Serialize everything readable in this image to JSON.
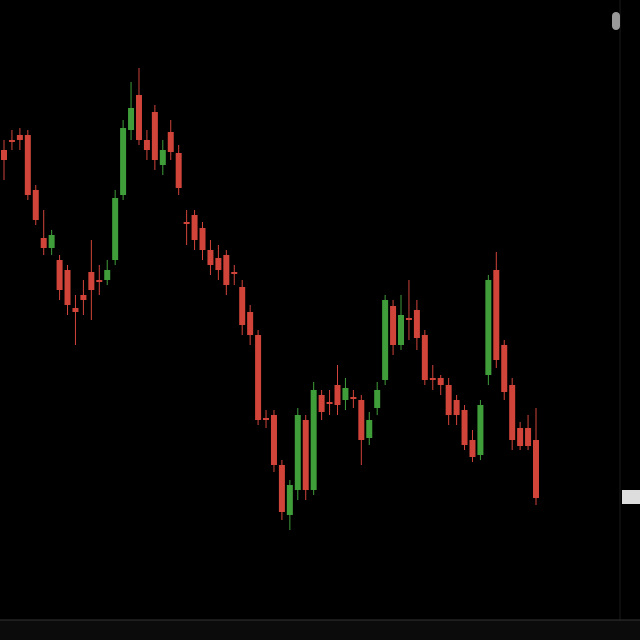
{
  "chart_data": {
    "type": "candlestick",
    "ylim": [
      20,
      640
    ],
    "up_color": "#3f9e3a",
    "down_color": "#d0443a",
    "open": [
      490,
      500,
      505,
      505,
      450,
      402,
      392,
      380,
      370,
      332,
      345,
      368,
      360,
      360,
      380,
      445,
      510,
      545,
      500,
      528,
      475,
      508,
      487,
      418,
      425,
      412,
      390,
      382,
      385,
      368,
      353,
      328,
      305,
      222,
      225,
      175,
      125,
      150,
      220,
      150,
      245,
      238,
      255,
      240,
      243,
      240,
      202,
      232,
      260,
      334,
      295,
      322,
      330,
      305,
      262,
      262,
      255,
      240,
      230,
      200,
      185,
      265,
      370,
      295,
      255,
      212,
      212,
      200
    ],
    "close": [
      480,
      498,
      500,
      445,
      420,
      392,
      405,
      350,
      335,
      328,
      340,
      350,
      358,
      370,
      442,
      512,
      532,
      500,
      490,
      480,
      490,
      488,
      452,
      416,
      400,
      390,
      375,
      370,
      355,
      366,
      315,
      305,
      220,
      220,
      175,
      128,
      155,
      225,
      150,
      250,
      228,
      236,
      235,
      252,
      241,
      200,
      220,
      250,
      340,
      295,
      325,
      320,
      302,
      260,
      260,
      255,
      225,
      225,
      195,
      183,
      235,
      360,
      280,
      248,
      200,
      194,
      194,
      142
    ],
    "high": [
      500,
      510,
      512,
      510,
      455,
      430,
      410,
      385,
      375,
      345,
      360,
      400,
      375,
      380,
      450,
      520,
      558,
      572,
      510,
      535,
      500,
      520,
      495,
      430,
      430,
      418,
      400,
      395,
      390,
      375,
      360,
      335,
      310,
      230,
      230,
      180,
      160,
      232,
      225,
      258,
      250,
      250,
      275,
      262,
      250,
      245,
      228,
      258,
      345,
      340,
      345,
      360,
      340,
      310,
      275,
      265,
      262,
      245,
      235,
      210,
      240,
      365,
      388,
      300,
      262,
      218,
      225,
      232
    ],
    "low": [
      460,
      490,
      490,
      440,
      415,
      385,
      385,
      340,
      325,
      295,
      325,
      320,
      345,
      355,
      375,
      440,
      500,
      495,
      480,
      470,
      465,
      480,
      445,
      395,
      390,
      380,
      365,
      360,
      345,
      355,
      305,
      295,
      215,
      212,
      168,
      120,
      110,
      140,
      140,
      145,
      220,
      225,
      225,
      230,
      232,
      175,
      195,
      225,
      255,
      285,
      290,
      300,
      290,
      255,
      250,
      245,
      215,
      215,
      190,
      178,
      180,
      255,
      272,
      240,
      190,
      190,
      190,
      135
    ]
  }
}
